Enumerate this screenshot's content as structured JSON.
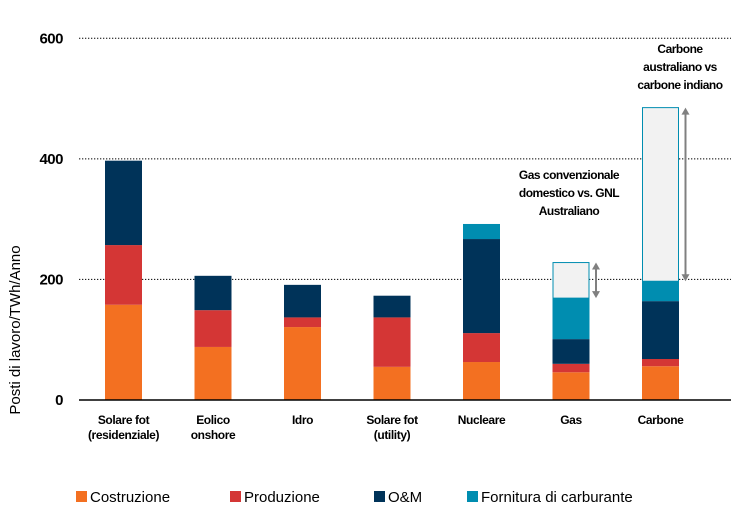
{
  "chart_data": {
    "type": "bar",
    "stacked": true,
    "title": "",
    "xlabel": "",
    "ylabel": "Posti di lavoro/TWh/Anno",
    "ylim": [
      0,
      600
    ],
    "yticks": [
      "0",
      "200",
      "400",
      "600"
    ],
    "grid": "horizontal dotted",
    "legend_position": "bottom",
    "categories": [
      [
        "Solare fot",
        "(residenziale)"
      ],
      [
        "Eolico",
        "onshore"
      ],
      [
        "Idro"
      ],
      [
        "Solare fot",
        "(utility)"
      ],
      [
        "Nucleare"
      ],
      [
        "Gas"
      ],
      [
        "Carbone"
      ]
    ],
    "series": [
      {
        "name": "Costruzione",
        "color": "#F37021",
        "values": [
          158,
          88,
          121,
          55,
          63,
          46,
          56
        ]
      },
      {
        "name": "Produzione",
        "color": "#D43635",
        "values": [
          99,
          61,
          16,
          82,
          48,
          14,
          12
        ]
      },
      {
        "name": "O&M",
        "color": "#003359",
        "values": [
          140,
          57,
          54,
          36,
          156,
          41,
          96
        ]
      },
      {
        "name": "Fornitura di carburante",
        "color": "#008DB0",
        "values": [
          0,
          0,
          0,
          0,
          25,
          68,
          33
        ]
      }
    ],
    "ranges": [
      {
        "category": "Gas",
        "from": 169,
        "to": 228
      },
      {
        "category": "Carbone",
        "from": 197,
        "to": 485
      }
    ],
    "range_fill": "#F2F2F2",
    "annotations": [
      {
        "category": "Gas",
        "lines": [
          "Gas convenzionale",
          "domestico vs. GNL",
          "Australiano"
        ]
      },
      {
        "category": "Carbone",
        "lines": [
          "Carbone",
          "australiano vs",
          "carbone indiano"
        ]
      }
    ]
  }
}
